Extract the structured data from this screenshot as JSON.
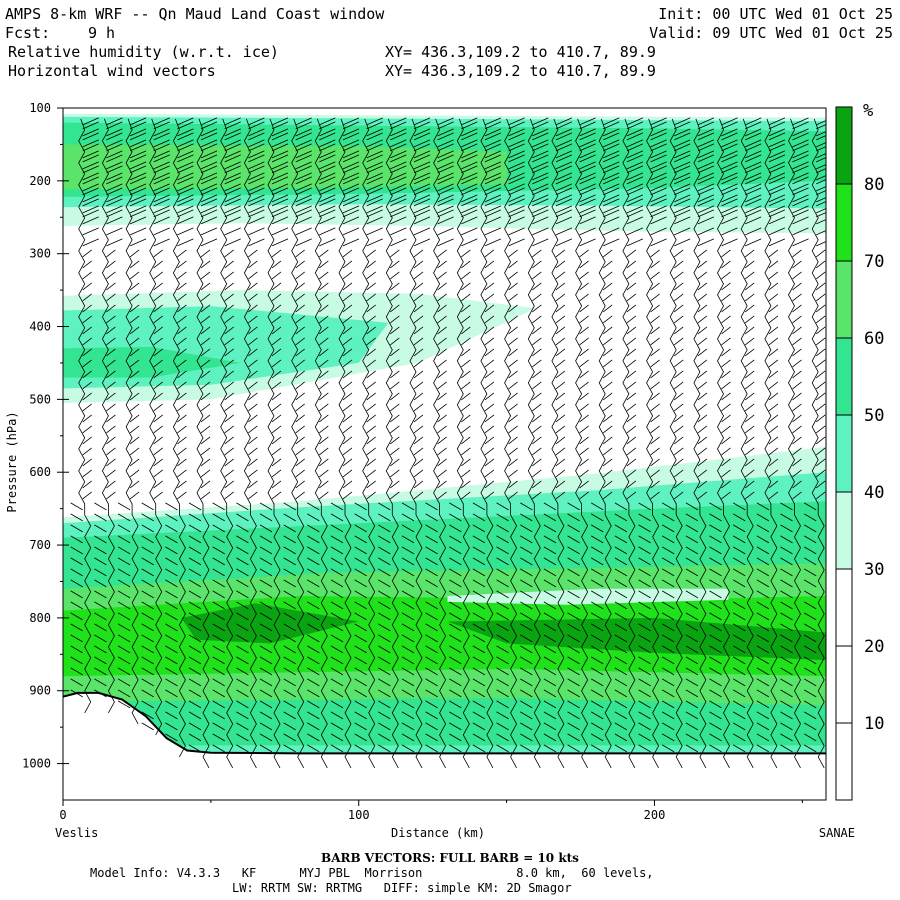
{
  "header": {
    "title": "AMPS 8-km WRF -- Qn Maud Land Coast window",
    "init": "Init: 00 UTC Wed 01 Oct 25",
    "fcst_label": "Fcst:",
    "fcst_value": "9 h",
    "valid": "Valid: 09 UTC Wed 01 Oct 25",
    "field1": "Relative humidity (w.r.t. ice)",
    "xy1": "XY= 436.3,109.2 to 410.7, 89.9",
    "field2": "Horizontal wind vectors",
    "xy2": "XY= 436.3,109.2 to 410.7, 89.9"
  },
  "footer": {
    "barb_note": "BARB VECTORS:  FULL BARB = 10 kts",
    "model_line1": "Model Info: V4.3.3   KF      MYJ PBL  Morrison             8.0 km,  60 levels,",
    "model_line2": "LW: RRTM SW: RRTMG   DIFF: simple KM: 2D Smagor"
  },
  "colors": {
    "rh_30_40": "#c8fbe4",
    "rh_40_50": "#5ef2c0",
    "rh_50_60": "#33e490",
    "rh_60_70": "#5ae46a",
    "rh_70_80": "#1fe21a",
    "rh_80_90": "#0aa412",
    "terrain_line": "#000000",
    "barb": "#000000"
  },
  "chart_data": {
    "type": "heatmap",
    "title": "Relative humidity (w.r.t. ice) and horizontal wind vectors, cross section",
    "xlabel": "Distance (km)",
    "ylabel": "Pressure (hPa)",
    "xlim": [
      0,
      258
    ],
    "ylim": [
      1050,
      100
    ],
    "x_ticks": [
      0,
      100,
      200
    ],
    "y_ticks": [
      100,
      200,
      300,
      400,
      500,
      600,
      700,
      800,
      900,
      1000
    ],
    "left_endpoint": "Veslis",
    "right_endpoint": "SANAE",
    "colorbar": {
      "unit": "%",
      "ticks": [
        10,
        20,
        30,
        40,
        50,
        60,
        70,
        80
      ],
      "bins": [
        {
          "from": 0,
          "to": 30,
          "color": "#ffffff"
        },
        {
          "from": 30,
          "to": 40,
          "color": "#c8fbe4"
        },
        {
          "from": 40,
          "to": 50,
          "color": "#5ef2c0"
        },
        {
          "from": 50,
          "to": 60,
          "color": "#33e490"
        },
        {
          "from": 60,
          "to": 70,
          "color": "#5ae46a"
        },
        {
          "from": 70,
          "to": 80,
          "color": "#1fe21a"
        },
        {
          "from": 80,
          "to": 90,
          "color": "#0aa412"
        }
      ]
    },
    "rh_regions": [
      {
        "name": "upper-moist-band-light",
        "rh": 35,
        "poly": [
          [
            0,
            108
          ],
          [
            258,
            113
          ],
          [
            258,
            272
          ],
          [
            200,
            270
          ],
          [
            120,
            262
          ],
          [
            60,
            258
          ],
          [
            0,
            262
          ]
        ]
      },
      {
        "name": "upper-moist-band-mid",
        "rh": 45,
        "poly": [
          [
            0,
            112
          ],
          [
            258,
            118
          ],
          [
            258,
            238
          ],
          [
            180,
            234
          ],
          [
            100,
            232
          ],
          [
            0,
            236
          ]
        ]
      },
      {
        "name": "upper-moist-band-core",
        "rh": 55,
        "poly": [
          [
            0,
            120
          ],
          [
            200,
            128
          ],
          [
            258,
            132
          ],
          [
            258,
            200
          ],
          [
            200,
            210
          ],
          [
            100,
            218
          ],
          [
            0,
            222
          ]
        ]
      },
      {
        "name": "upper-moist-band-peak",
        "rh": 65,
        "poly": [
          [
            0,
            150
          ],
          [
            100,
            152
          ],
          [
            150,
            160
          ],
          [
            150,
            205
          ],
          [
            80,
            210
          ],
          [
            0,
            212
          ]
        ]
      },
      {
        "name": "mid-moist-layer-light",
        "rh": 35,
        "poly": [
          [
            0,
            358
          ],
          [
            60,
            350
          ],
          [
            120,
            355
          ],
          [
            160,
            375
          ],
          [
            120,
            450
          ],
          [
            50,
            500
          ],
          [
            0,
            505
          ]
        ]
      },
      {
        "name": "mid-moist-layer-mid",
        "rh": 45,
        "poly": [
          [
            0,
            378
          ],
          [
            50,
            372
          ],
          [
            110,
            395
          ],
          [
            100,
            450
          ],
          [
            50,
            480
          ],
          [
            0,
            485
          ]
        ]
      },
      {
        "name": "mid-moist-layer-core",
        "rh": 55,
        "poly": [
          [
            0,
            430
          ],
          [
            30,
            428
          ],
          [
            60,
            450
          ],
          [
            30,
            470
          ],
          [
            0,
            470
          ]
        ]
      },
      {
        "name": "low-layer-light",
        "rh": 35,
        "poly": [
          [
            0,
            662
          ],
          [
            80,
            640
          ],
          [
            180,
            602
          ],
          [
            258,
            565
          ],
          [
            258,
            1050
          ],
          [
            0,
            1050
          ]
        ]
      },
      {
        "name": "low-layer-mid",
        "rh": 45,
        "poly": [
          [
            0,
            670
          ],
          [
            80,
            648
          ],
          [
            180,
            625
          ],
          [
            258,
            600
          ],
          [
            258,
            1050
          ],
          [
            0,
            1050
          ]
        ]
      },
      {
        "name": "low-layer-green",
        "rh": 55,
        "poly": [
          [
            0,
            690
          ],
          [
            100,
            670
          ],
          [
            200,
            650
          ],
          [
            258,
            640
          ],
          [
            258,
            975
          ],
          [
            0,
            975
          ]
        ]
      },
      {
        "name": "low-layer-green-2",
        "rh": 65,
        "poly": [
          [
            0,
            760
          ],
          [
            90,
            738
          ],
          [
            200,
            730
          ],
          [
            258,
            725
          ],
          [
            258,
            920
          ],
          [
            150,
            910
          ],
          [
            0,
            915
          ]
        ]
      },
      {
        "name": "low-layer-bright",
        "rh": 75,
        "poly": [
          [
            0,
            790
          ],
          [
            80,
            770
          ],
          [
            200,
            775
          ],
          [
            258,
            770
          ],
          [
            258,
            880
          ],
          [
            150,
            870
          ],
          [
            0,
            880
          ]
        ]
      },
      {
        "name": "low-layer-peak-west",
        "rh": 85,
        "poly": [
          [
            40,
            800
          ],
          [
            65,
            780
          ],
          [
            100,
            805
          ],
          [
            70,
            835
          ],
          [
            45,
            830
          ]
        ]
      },
      {
        "name": "low-layer-peak-east",
        "rh": 85,
        "poly": [
          [
            130,
            805
          ],
          [
            200,
            800
          ],
          [
            258,
            820
          ],
          [
            258,
            858
          ],
          [
            200,
            848
          ],
          [
            150,
            835
          ]
        ]
      },
      {
        "name": "dry-lens-low",
        "rh": 30,
        "poly": [
          [
            130,
            770
          ],
          [
            180,
            760
          ],
          [
            225,
            760
          ],
          [
            225,
            775
          ],
          [
            170,
            782
          ],
          [
            130,
            778
          ]
        ]
      }
    ],
    "terrain": {
      "distance_km": [
        0,
        5,
        12,
        20,
        28,
        35,
        42,
        50,
        80,
        120,
        200,
        258
      ],
      "surface_hPa": [
        908,
        903,
        903,
        912,
        935,
        965,
        982,
        985,
        986,
        986,
        986,
        986
      ]
    },
    "wind_barbs": {
      "spacing_km": 8,
      "note": "barbs every ~8 km along section at each model level"
    }
  }
}
